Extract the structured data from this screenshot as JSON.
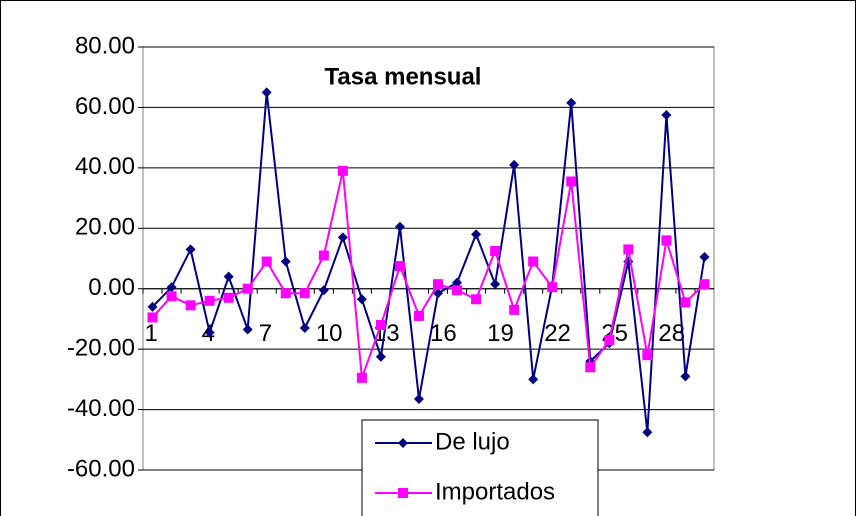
{
  "chart_data": {
    "type": "line",
    "title": "Tasa mensual",
    "categories": [
      "1",
      null,
      null,
      "4",
      null,
      null,
      "7",
      null,
      null,
      "10",
      null,
      null,
      "13",
      null,
      null,
      "16",
      null,
      null,
      "19",
      null,
      null,
      "22",
      null,
      null,
      "25",
      null,
      null,
      "28",
      null,
      null
    ],
    "series": [
      {
        "name": "De lujo",
        "color": "#000080",
        "marker": "diamond",
        "values": [
          -6,
          0.5,
          13,
          -14.5,
          4,
          -13.5,
          65,
          9,
          -13,
          -0.5,
          17,
          -3.5,
          -22.5,
          20.5,
          -36.5,
          -1.5,
          2,
          18,
          1.5,
          41,
          -30,
          1,
          61.5,
          -24,
          -18,
          9,
          -47.5,
          57.5,
          -29,
          10.5
        ]
      },
      {
        "name": "Importados",
        "color": "#ff00ff",
        "marker": "square",
        "values": [
          -9.5,
          -2.5,
          -5.5,
          -4,
          -3,
          0,
          9,
          -1.5,
          -1.5,
          11,
          39,
          -29.5,
          -12,
          7.5,
          -9,
          1.5,
          -0.5,
          -3.5,
          12.5,
          -7,
          9,
          0.5,
          35.5,
          -26,
          -17,
          13,
          -22,
          16,
          -4.5,
          1.5
        ]
      }
    ],
    "ylim": [
      -60,
      80
    ],
    "yticks": [
      {
        "value": -60,
        "label": "-60.00"
      },
      {
        "value": -40,
        "label": "-40.00"
      },
      {
        "value": -20,
        "label": "-20.00"
      },
      {
        "value": 0,
        "label": "0.00"
      },
      {
        "value": 20,
        "label": "20.00"
      },
      {
        "value": 40,
        "label": "40.00"
      },
      {
        "value": 60,
        "label": "60.00"
      },
      {
        "value": 80,
        "label": "80.00"
      }
    ],
    "grid": true
  }
}
